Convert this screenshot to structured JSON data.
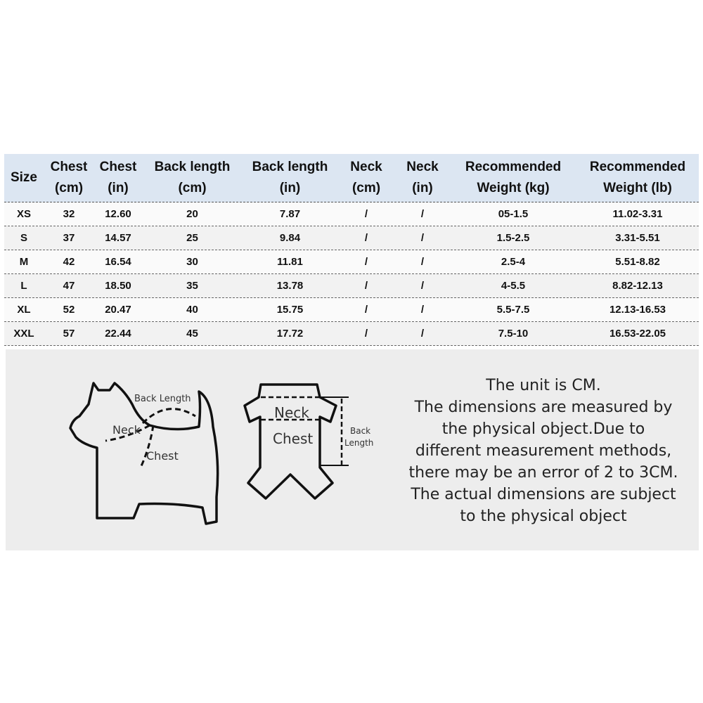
{
  "table": {
    "headers": [
      "Size",
      "Chest\n(cm)",
      "Chest\n(in)",
      "Back length\n(cm)",
      "Back length\n(in)",
      "Neck\n(cm)",
      "Neck\n(in)",
      "Recommended\nWeight (kg)",
      "Recommended\nWeight (lb)"
    ],
    "rows": [
      [
        "XS",
        "32",
        "12.60",
        "20",
        "7.87",
        "/",
        "/",
        "05-1.5",
        "11.02-3.31"
      ],
      [
        "S",
        "37",
        "14.57",
        "25",
        "9.84",
        "/",
        "/",
        "1.5-2.5",
        "3.31-5.51"
      ],
      [
        "M",
        "42",
        "16.54",
        "30",
        "11.81",
        "/",
        "/",
        "2.5-4",
        "5.51-8.82"
      ],
      [
        "L",
        "47",
        "18.50",
        "35",
        "13.78",
        "/",
        "/",
        "4-5.5",
        "8.82-12.13"
      ],
      [
        "XL",
        "52",
        "20.47",
        "40",
        "15.75",
        "/",
        "/",
        "5.5-7.5",
        "12.13-16.53"
      ],
      [
        "XXL",
        "57",
        "22.44",
        "45",
        "17.72",
        "/",
        "/",
        "7.5-10",
        "16.53-22.05"
      ]
    ]
  },
  "diagram": {
    "dog": {
      "back_length": "Back Length",
      "neck": "Neck",
      "chest": "Chest"
    },
    "garment": {
      "neck": "Neck",
      "chest": "Chest",
      "back": "Back",
      "length": "Length"
    }
  },
  "note": [
    "The unit is CM.",
    "The dimensions are measured by",
    "the physical object.Due to",
    "different measurement methods,",
    "there may be an error of 2 to 3CM.",
    "The actual dimensions are subject",
    "to the physical object"
  ]
}
